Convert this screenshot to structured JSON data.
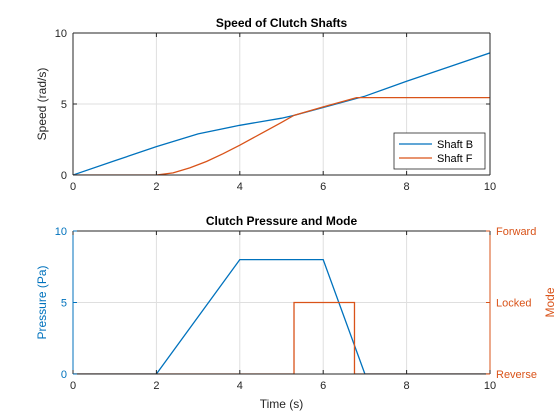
{
  "chart_data": [
    {
      "type": "line",
      "title": "Speed of Clutch Shafts",
      "xlabel": "",
      "ylabel": "Speed (rad/s)",
      "xlim": [
        0,
        10
      ],
      "ylim": [
        0,
        10
      ],
      "xticks": [
        0,
        2,
        4,
        6,
        8,
        10
      ],
      "yticks": [
        0,
        5,
        10
      ],
      "grid": true,
      "legend": "bottom-right",
      "series": [
        {
          "name": "Shaft B",
          "color": "#0072BD",
          "x": [
            0,
            1,
            2,
            3,
            4,
            5,
            5.3,
            6,
            7,
            8,
            9,
            10
          ],
          "y": [
            0,
            1.0,
            2.0,
            2.9,
            3.5,
            4.0,
            4.2,
            4.75,
            5.55,
            6.6,
            7.6,
            8.6
          ]
        },
        {
          "name": "Shaft F",
          "color": "#D95319",
          "x": [
            0,
            2.0,
            2.4,
            2.8,
            3.2,
            3.6,
            4.0,
            4.5,
            5.0,
            5.3,
            6,
            6.8,
            10
          ],
          "y": [
            0,
            0,
            0.15,
            0.5,
            0.95,
            1.5,
            2.1,
            2.9,
            3.7,
            4.2,
            4.8,
            5.45,
            5.45
          ]
        }
      ]
    },
    {
      "type": "line",
      "title": "Clutch Pressure and Mode",
      "xlabel": "Time (s)",
      "ylabel": "Pressure (Pa)",
      "ylabel_right": "Mode",
      "xlim": [
        0,
        10
      ],
      "ylim": [
        0,
        10
      ],
      "xticks": [
        0,
        2,
        4,
        6,
        8,
        10
      ],
      "yticks": [
        0,
        5,
        10
      ],
      "yticks_right": [
        "Reverse",
        "Locked",
        "Forward"
      ],
      "grid": true,
      "left_axis_color": "#0072BD",
      "right_axis_color": "#D95319",
      "series": [
        {
          "axis": "left",
          "color": "#0072BD",
          "x": [
            0,
            2,
            4,
            6,
            7,
            10
          ],
          "y": [
            0,
            0,
            8,
            8,
            0,
            0
          ]
        },
        {
          "axis": "right",
          "color": "#D95319",
          "x": [
            0,
            5.3,
            5.3,
            6.75,
            6.75,
            10
          ],
          "y": [
            0,
            0,
            5,
            5,
            0,
            0
          ]
        }
      ]
    }
  ]
}
